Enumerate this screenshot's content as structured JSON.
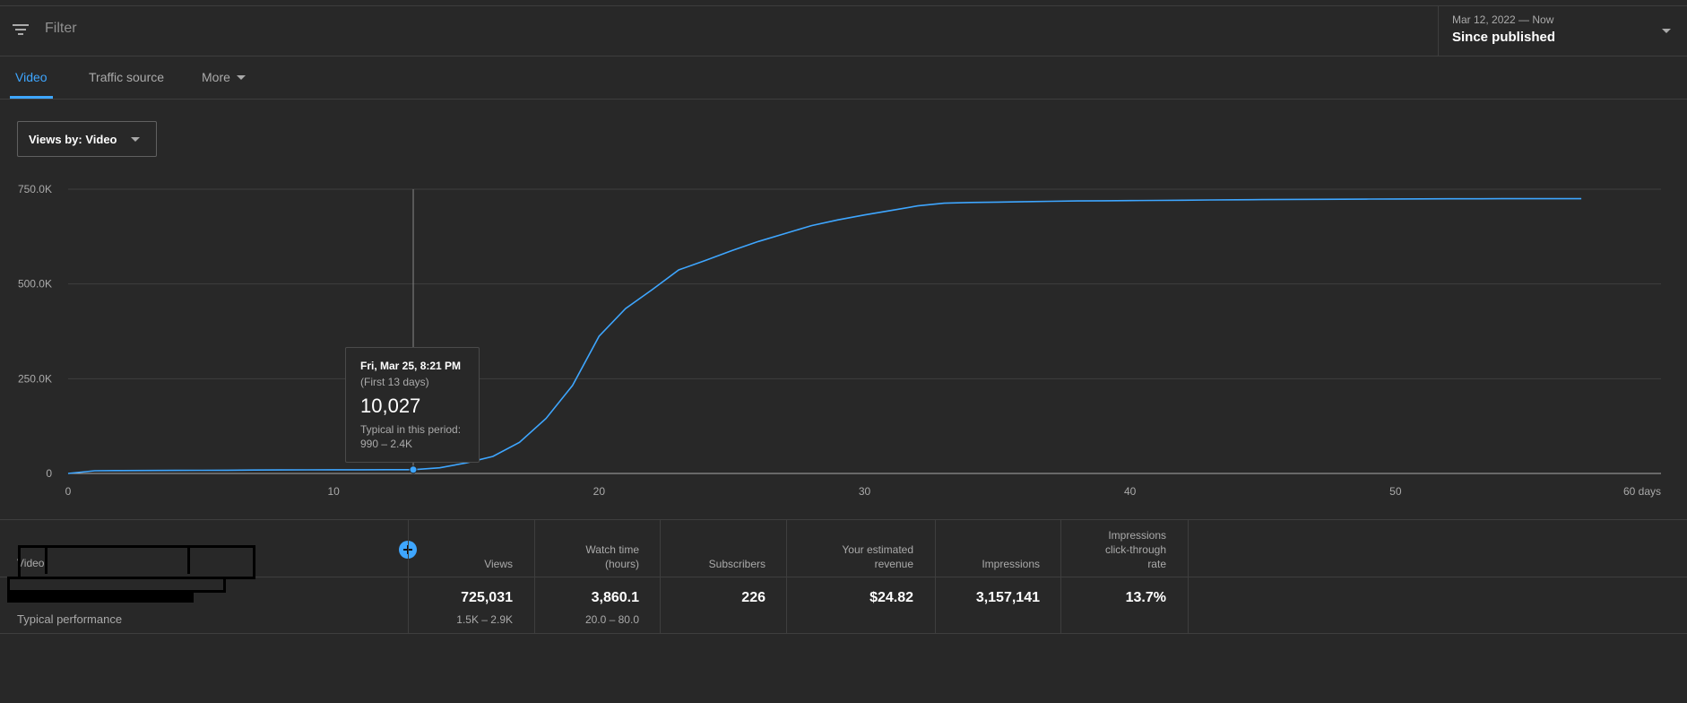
{
  "filter": {
    "placeholder": "Filter",
    "date_range": "Mar 12, 2022 — Now",
    "date_label": "Since published"
  },
  "tabs": [
    {
      "label": "Video",
      "active": true
    },
    {
      "label": "Traffic source",
      "active": false
    },
    {
      "label": "More",
      "active": false
    }
  ],
  "views_by": "Views by: Video",
  "tooltip": {
    "date": "Fri, Mar 25, 8:21 PM",
    "period": "(First 13 days)",
    "value": "10,027",
    "typical_label": "Typical in this period:",
    "typical_range": "990 – 2.4K"
  },
  "chart_data": {
    "type": "line",
    "x_unit_label": "days",
    "xlim": [
      0,
      60
    ],
    "ylim": [
      0,
      750000
    ],
    "x_ticks": [
      "0",
      "10",
      "20",
      "30",
      "40",
      "50",
      "60 days"
    ],
    "y_ticks": [
      "0",
      "250.0K",
      "500.0K",
      "750.0K"
    ],
    "grid": true,
    "line_color": "#3ea6ff",
    "highlight_x": 13,
    "series": [
      {
        "x": [
          0,
          1,
          2,
          3,
          4,
          5,
          6,
          7,
          8,
          9,
          10,
          11,
          12,
          13,
          14,
          15,
          16,
          17,
          18,
          19,
          20,
          21,
          22,
          23,
          24,
          25,
          26,
          27,
          28,
          29,
          30,
          31,
          32,
          33,
          34,
          35,
          36,
          37,
          38,
          39,
          40,
          41,
          42,
          43,
          44,
          45,
          46,
          47,
          48,
          49,
          50,
          51,
          52,
          53,
          54,
          55,
          56,
          57
        ],
        "y": [
          0,
          7000,
          7500,
          7800,
          8000,
          8200,
          8500,
          9000,
          9300,
          9500,
          9700,
          9800,
          9900,
          10027,
          15000,
          28000,
          45000,
          82000,
          145000,
          232000,
          362000,
          435000,
          485000,
          537000,
          562000,
          588000,
          612000,
          633000,
          654000,
          669000,
          682000,
          694000,
          706000,
          713000,
          715000,
          716000,
          717000,
          718000,
          719000,
          719500,
          720000,
          720500,
          721000,
          721500,
          722000,
          722500,
          723000,
          723300,
          723600,
          723900,
          724200,
          724400,
          724600,
          724800,
          724900,
          725000,
          725020,
          725031
        ]
      }
    ]
  },
  "table": {
    "video_header": "Video",
    "typical_label": "Typical performance",
    "columns": [
      {
        "header": [
          "Views"
        ],
        "value": "725,031",
        "typical": "1.5K – 2.9K"
      },
      {
        "header": [
          "Watch time",
          "(hours)"
        ],
        "value": "3,860.1",
        "typical": "20.0 – 80.0"
      },
      {
        "header": [
          "Subscribers"
        ],
        "value": "226",
        "typical": ""
      },
      {
        "header": [
          "Your estimated",
          "revenue"
        ],
        "value": "$24.82",
        "typical": ""
      },
      {
        "header": [
          "Impressions"
        ],
        "value": "3,157,141",
        "typical": ""
      },
      {
        "header": [
          "Impressions",
          "click-through",
          "rate"
        ],
        "value": "13.7%",
        "typical": ""
      }
    ]
  }
}
